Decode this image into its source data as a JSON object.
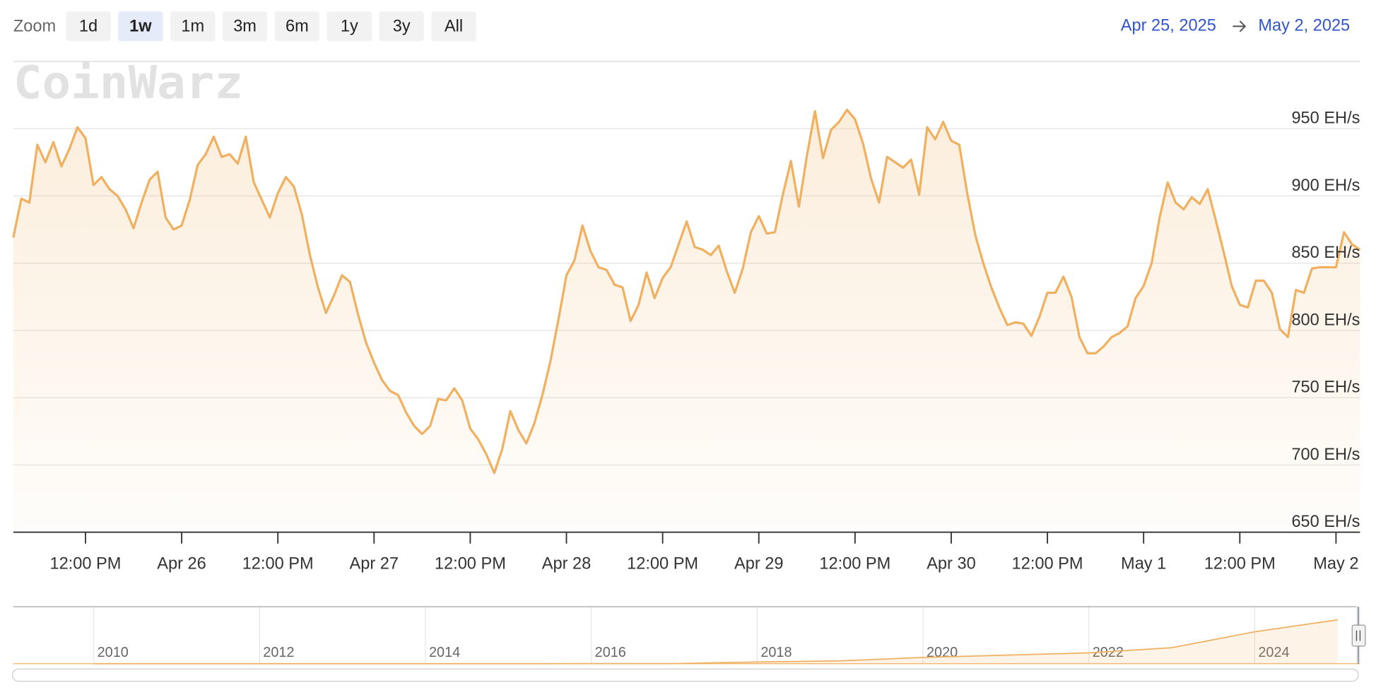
{
  "zoom": {
    "label": "Zoom",
    "buttons": [
      "1d",
      "1w",
      "1m",
      "3m",
      "6m",
      "1y",
      "3y",
      "All"
    ],
    "selected": 1
  },
  "range": {
    "from": "Apr 25, 2025",
    "to": "May 2, 2025"
  },
  "watermark": "CoinWarz",
  "chart_data": {
    "type": "line",
    "color": "#f0b060",
    "grid": true,
    "x": [
      "2025-04-25T03:00",
      "2025-04-25T04:00",
      "2025-04-25T05:00",
      "2025-04-25T06:00",
      "2025-04-25T07:00",
      "2025-04-25T08:00",
      "2025-04-25T09:00",
      "2025-04-25T10:00",
      "2025-04-25T11:00",
      "2025-04-25T12:00",
      "2025-04-25T13:00",
      "2025-04-25T14:00",
      "2025-04-25T15:00",
      "2025-04-25T16:00",
      "2025-04-25T17:00",
      "2025-04-25T18:00",
      "2025-04-25T19:00",
      "2025-04-25T20:00",
      "2025-04-25T21:00",
      "2025-04-25T22:00",
      "2025-04-25T23:00",
      "2025-04-26T00:00",
      "2025-04-26T01:00",
      "2025-04-26T02:00",
      "2025-04-26T03:00",
      "2025-04-26T04:00",
      "2025-04-26T05:00",
      "2025-04-26T06:00",
      "2025-04-26T07:00",
      "2025-04-26T08:00",
      "2025-04-26T09:00",
      "2025-04-26T10:00",
      "2025-04-26T11:00",
      "2025-04-26T12:00",
      "2025-04-26T13:00",
      "2025-04-26T14:00",
      "2025-04-26T15:00",
      "2025-04-26T16:00",
      "2025-04-26T17:00",
      "2025-04-26T18:00",
      "2025-04-26T19:00",
      "2025-04-26T20:00",
      "2025-04-26T21:00",
      "2025-04-26T22:00",
      "2025-04-26T23:00",
      "2025-04-27T00:00",
      "2025-04-27T01:00",
      "2025-04-27T02:00",
      "2025-04-27T03:00",
      "2025-04-27T04:00",
      "2025-04-27T05:00",
      "2025-04-27T06:00",
      "2025-04-27T07:00",
      "2025-04-27T08:00",
      "2025-04-27T09:00",
      "2025-04-27T10:00",
      "2025-04-27T11:00",
      "2025-04-27T12:00",
      "2025-04-27T13:00",
      "2025-04-27T14:00",
      "2025-04-27T15:00",
      "2025-04-27T16:00",
      "2025-04-27T17:00",
      "2025-04-27T18:00",
      "2025-04-27T19:00",
      "2025-04-27T20:00",
      "2025-04-27T21:00",
      "2025-04-27T22:00",
      "2025-04-27T23:00",
      "2025-04-28T00:00",
      "2025-04-28T01:00",
      "2025-04-28T02:00",
      "2025-04-28T03:00",
      "2025-04-28T04:00",
      "2025-04-28T05:00",
      "2025-04-28T06:00",
      "2025-04-28T07:00",
      "2025-04-28T08:00",
      "2025-04-28T09:00",
      "2025-04-28T10:00",
      "2025-04-28T11:00",
      "2025-04-28T12:00",
      "2025-04-28T13:00",
      "2025-04-28T14:00",
      "2025-04-28T15:00",
      "2025-04-28T16:00",
      "2025-04-28T17:00",
      "2025-04-28T18:00",
      "2025-04-28T19:00",
      "2025-04-28T20:00",
      "2025-04-28T21:00",
      "2025-04-28T22:00",
      "2025-04-28T23:00",
      "2025-04-29T00:00",
      "2025-04-29T01:00",
      "2025-04-29T02:00",
      "2025-04-29T03:00",
      "2025-04-29T04:00",
      "2025-04-29T05:00",
      "2025-04-29T06:00",
      "2025-04-29T07:00",
      "2025-04-29T08:00",
      "2025-04-29T09:00",
      "2025-04-29T10:00",
      "2025-04-29T11:00",
      "2025-04-29T12:00",
      "2025-04-29T13:00",
      "2025-04-29T14:00",
      "2025-04-29T15:00",
      "2025-04-29T16:00",
      "2025-04-29T17:00",
      "2025-04-29T18:00",
      "2025-04-29T19:00",
      "2025-04-29T20:00",
      "2025-04-29T21:00",
      "2025-04-29T22:00",
      "2025-04-29T23:00",
      "2025-04-30T00:00",
      "2025-04-30T01:00",
      "2025-04-30T02:00",
      "2025-04-30T03:00",
      "2025-04-30T04:00",
      "2025-04-30T05:00",
      "2025-04-30T06:00",
      "2025-04-30T07:00",
      "2025-04-30T08:00",
      "2025-04-30T09:00",
      "2025-04-30T10:00",
      "2025-04-30T11:00",
      "2025-04-30T12:00",
      "2025-04-30T13:00",
      "2025-04-30T14:00",
      "2025-04-30T15:00",
      "2025-04-30T16:00",
      "2025-04-30T17:00",
      "2025-04-30T18:00",
      "2025-04-30T19:00",
      "2025-04-30T20:00",
      "2025-04-30T21:00",
      "2025-04-30T22:00",
      "2025-04-30T23:00",
      "2025-05-01T00:00",
      "2025-05-01T01:00",
      "2025-05-01T02:00",
      "2025-05-01T03:00",
      "2025-05-01T04:00",
      "2025-05-01T05:00",
      "2025-05-01T06:00",
      "2025-05-01T07:00",
      "2025-05-01T08:00",
      "2025-05-01T09:00",
      "2025-05-01T10:00",
      "2025-05-01T11:00",
      "2025-05-01T12:00",
      "2025-05-01T13:00",
      "2025-05-01T14:00",
      "2025-05-01T15:00",
      "2025-05-01T16:00",
      "2025-05-01T17:00",
      "2025-05-01T18:00",
      "2025-05-01T19:00",
      "2025-05-01T20:00",
      "2025-05-01T21:00",
      "2025-05-01T22:00",
      "2025-05-01T23:00",
      "2025-05-02T00:00",
      "2025-05-02T01:00",
      "2025-05-02T02:00",
      "2025-05-02T03:00"
    ],
    "values": [
      869,
      898,
      895,
      938,
      925,
      940,
      922,
      935,
      951,
      943,
      908,
      914,
      905,
      900,
      890,
      876,
      895,
      912,
      918,
      884,
      875,
      878,
      897,
      923,
      931,
      944,
      929,
      931,
      924,
      944,
      910,
      897,
      884,
      902,
      914,
      907,
      886,
      856,
      832,
      813,
      826,
      841,
      836,
      812,
      791,
      776,
      763,
      755,
      752,
      739,
      729,
      723,
      729,
      749,
      748,
      757,
      748,
      727,
      719,
      708,
      694,
      712,
      740,
      726,
      716,
      731,
      752,
      777,
      808,
      841,
      852,
      878,
      859,
      847,
      845,
      834,
      832,
      807,
      819,
      843,
      824,
      839,
      847,
      864,
      881,
      862,
      860,
      856,
      863,
      844,
      828,
      846,
      873,
      885,
      872,
      873,
      901,
      926,
      892,
      930,
      963,
      928,
      949,
      955,
      964,
      957,
      939,
      913,
      895,
      929,
      925,
      921,
      927,
      901,
      951,
      942,
      955,
      941,
      938,
      902,
      871,
      850,
      832,
      817,
      804,
      806,
      805,
      796,
      810,
      828,
      828,
      840,
      825,
      795,
      783,
      783,
      788,
      795,
      798,
      803,
      824,
      833,
      850,
      884,
      910,
      895,
      890,
      899,
      894,
      905,
      882,
      858,
      833,
      819,
      817,
      837,
      837,
      828,
      801,
      795,
      830,
      828,
      846,
      847,
      847,
      847,
      873,
      864,
      860
    ],
    "xlim": [
      "2025-04-25T03:00",
      "2025-05-02T03:00"
    ],
    "xticks": [
      {
        "value": "2025-04-25T12:00",
        "label": "12:00 PM"
      },
      {
        "value": "2025-04-26T00:00",
        "label": "Apr 26"
      },
      {
        "value": "2025-04-26T12:00",
        "label": "12:00 PM"
      },
      {
        "value": "2025-04-27T00:00",
        "label": "Apr 27"
      },
      {
        "value": "2025-04-27T12:00",
        "label": "12:00 PM"
      },
      {
        "value": "2025-04-28T00:00",
        "label": "Apr 28"
      },
      {
        "value": "2025-04-28T12:00",
        "label": "12:00 PM"
      },
      {
        "value": "2025-04-29T00:00",
        "label": "Apr 29"
      },
      {
        "value": "2025-04-29T12:00",
        "label": "12:00 PM"
      },
      {
        "value": "2025-04-30T00:00",
        "label": "Apr 30"
      },
      {
        "value": "2025-04-30T12:00",
        "label": "12:00 PM"
      },
      {
        "value": "2025-05-01T00:00",
        "label": "May 1"
      },
      {
        "value": "2025-05-01T12:00",
        "label": "12:00 PM"
      },
      {
        "value": "2025-05-02T00:00",
        "label": "May 2"
      }
    ],
    "ylim": [
      650,
      1000
    ],
    "yticks": [
      {
        "value": 650,
        "label": "650 EH/s"
      },
      {
        "value": 700,
        "label": "700 EH/s"
      },
      {
        "value": 750,
        "label": "750 EH/s"
      },
      {
        "value": 800,
        "label": "800 EH/s"
      },
      {
        "value": 850,
        "label": "850 EH/s"
      },
      {
        "value": 900,
        "label": "900 EH/s"
      },
      {
        "value": 950,
        "label": "950 EH/s"
      }
    ]
  },
  "navigator": {
    "x": [
      2010,
      2011,
      2012,
      2013,
      2014,
      2015,
      2016,
      2017,
      2018,
      2019,
      2020,
      2021,
      2022,
      2023,
      2024,
      2025
    ],
    "values": [
      0,
      0,
      0,
      0,
      0.2,
      0.4,
      1,
      2,
      30,
      50,
      110,
      150,
      190,
      280,
      560,
      770
    ],
    "xlim": [
      2009.03,
      2025.27
    ],
    "ylim": [
      0,
      1000
    ],
    "xticks": [
      2010,
      2012,
      2014,
      2016,
      2018,
      2020,
      2022,
      2024
    ]
  }
}
